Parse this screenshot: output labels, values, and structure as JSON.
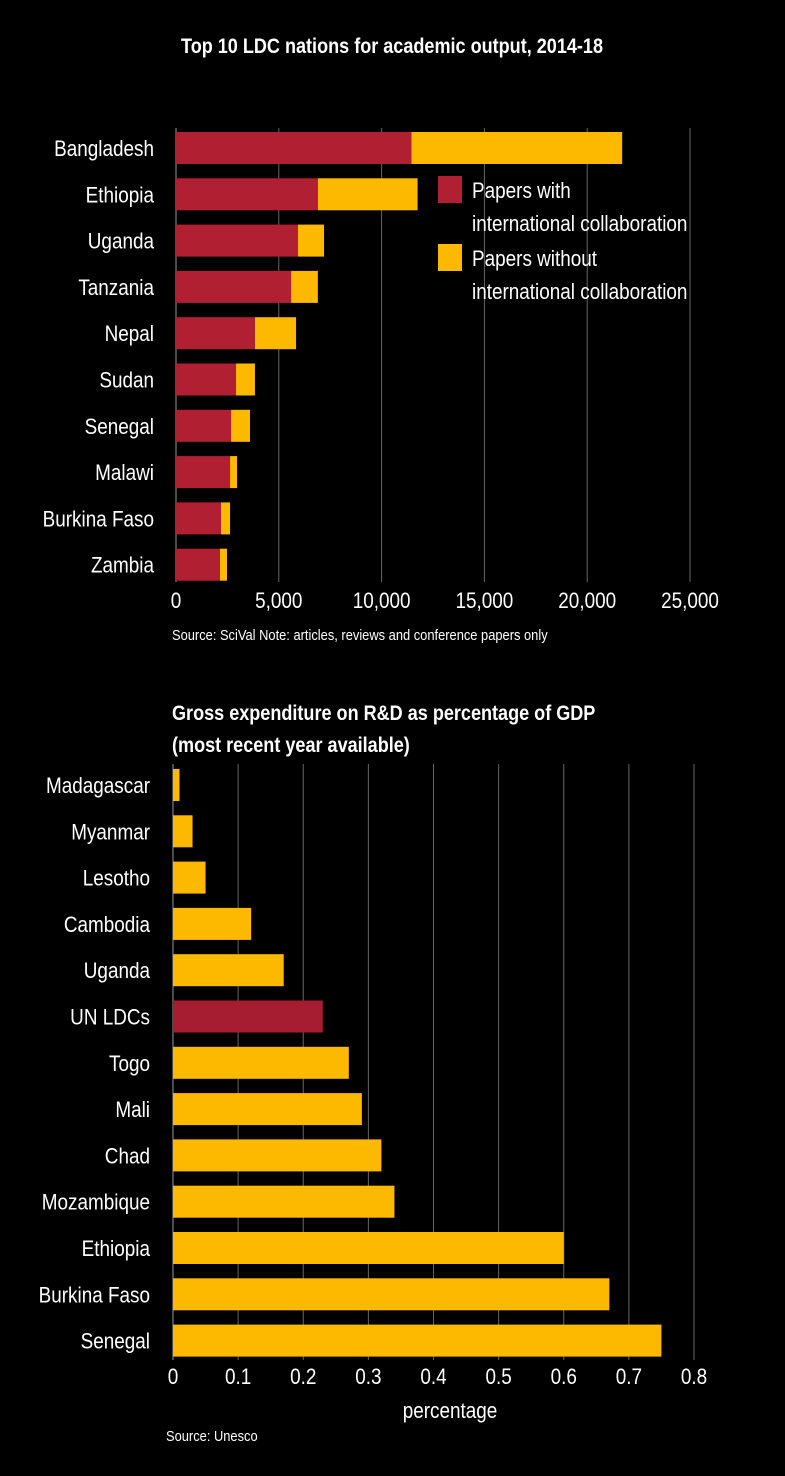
{
  "colors": {
    "background": "#000000",
    "with_collab": "#b01f32",
    "without_collab": "#fdb900",
    "highlight": "#a61c30",
    "grid": "#666666"
  },
  "chart_data": [
    {
      "type": "bar",
      "orientation": "horizontal",
      "stacked": true,
      "title": "Top 10 LDC nations for academic output, 2014-18",
      "categories": [
        "Bangladesh",
        "Ethiopia",
        "Uganda",
        "Tanzania",
        "Nepal",
        "Sudan",
        "Senegal",
        "Malawi",
        "Burkina Faso",
        "Zambia"
      ],
      "series": [
        {
          "name": "Papers with international collaboration",
          "color": "#b01f32",
          "values": [
            11450,
            6900,
            5930,
            5600,
            3840,
            2920,
            2680,
            2630,
            2190,
            2140
          ]
        },
        {
          "name": "Papers without international collaboration",
          "color": "#fdb900",
          "values": [
            10250,
            4850,
            1270,
            1300,
            2000,
            920,
            920,
            340,
            440,
            340
          ]
        }
      ],
      "xlim": [
        0,
        25000
      ],
      "xticks": [
        "0",
        "5,000",
        "10,000",
        "15,000",
        "20,000",
        "25,000"
      ],
      "xtick_values": [
        0,
        5000,
        10000,
        15000,
        20000,
        25000
      ],
      "grid": true,
      "legend_lines": [
        [
          "Papers with",
          "international collaboration"
        ],
        [
          "Papers without",
          "international collaboration"
        ]
      ],
      "legend_position": "right",
      "source": "Source: SciVal Note: articles, reviews and conference papers only"
    },
    {
      "type": "bar",
      "orientation": "horizontal",
      "title_lines": [
        "Gross expenditure on R&D as percentage of GDP",
        "(most recent year available)"
      ],
      "categories": [
        "Madagascar",
        "Myanmar",
        "Lesotho",
        "Cambodia",
        "Uganda",
        "UN LDCs",
        "Togo",
        "Mali",
        "Chad",
        "Mozambique",
        "Ethiopia",
        "Burkina Faso",
        "Senegal"
      ],
      "values": [
        0.01,
        0.03,
        0.05,
        0.12,
        0.17,
        0.23,
        0.27,
        0.29,
        0.32,
        0.34,
        0.6,
        0.67,
        0.75
      ],
      "highlight": "UN LDCs",
      "xlim": [
        0,
        0.8
      ],
      "xticks": [
        "0",
        "0.1",
        "0.2",
        "0.3",
        "0.4",
        "0.5",
        "0.6",
        "0.7",
        "0.8"
      ],
      "xtick_values": [
        0,
        0.1,
        0.2,
        0.3,
        0.4,
        0.5,
        0.6,
        0.7,
        0.8
      ],
      "xlabel": "percentage",
      "grid": true,
      "source": "Source: Unesco"
    }
  ]
}
